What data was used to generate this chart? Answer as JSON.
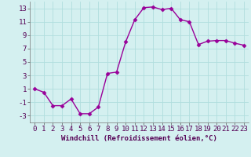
{
  "x": [
    0,
    1,
    2,
    3,
    4,
    5,
    6,
    7,
    8,
    9,
    10,
    11,
    12,
    13,
    14,
    15,
    16,
    17,
    18,
    19,
    20,
    21,
    22,
    23
  ],
  "y": [
    1,
    0.5,
    -1.5,
    -1.5,
    -0.5,
    -2.7,
    -2.7,
    -1.7,
    3.3,
    3.5,
    8.0,
    11.3,
    13.1,
    13.2,
    12.8,
    13.0,
    11.3,
    11.0,
    7.6,
    8.1,
    8.2,
    8.2,
    7.8,
    7.5
  ],
  "line_color": "#990099",
  "marker": "D",
  "marker_size": 2.5,
  "bg_color": "#d4f0f0",
  "grid_color": "#b0dede",
  "xlabel": "Windchill (Refroidissement éolien,°C)",
  "xlim": [
    -0.5,
    23.5
  ],
  "ylim": [
    -4,
    14
  ],
  "yticks": [
    -3,
    -1,
    1,
    3,
    5,
    7,
    9,
    11,
    13
  ],
  "xticks": [
    0,
    1,
    2,
    3,
    4,
    5,
    6,
    7,
    8,
    9,
    10,
    11,
    12,
    13,
    14,
    15,
    16,
    17,
    18,
    19,
    20,
    21,
    22,
    23
  ],
  "xlabel_fontsize": 6.5,
  "tick_fontsize": 6.5,
  "line_width": 1.0
}
